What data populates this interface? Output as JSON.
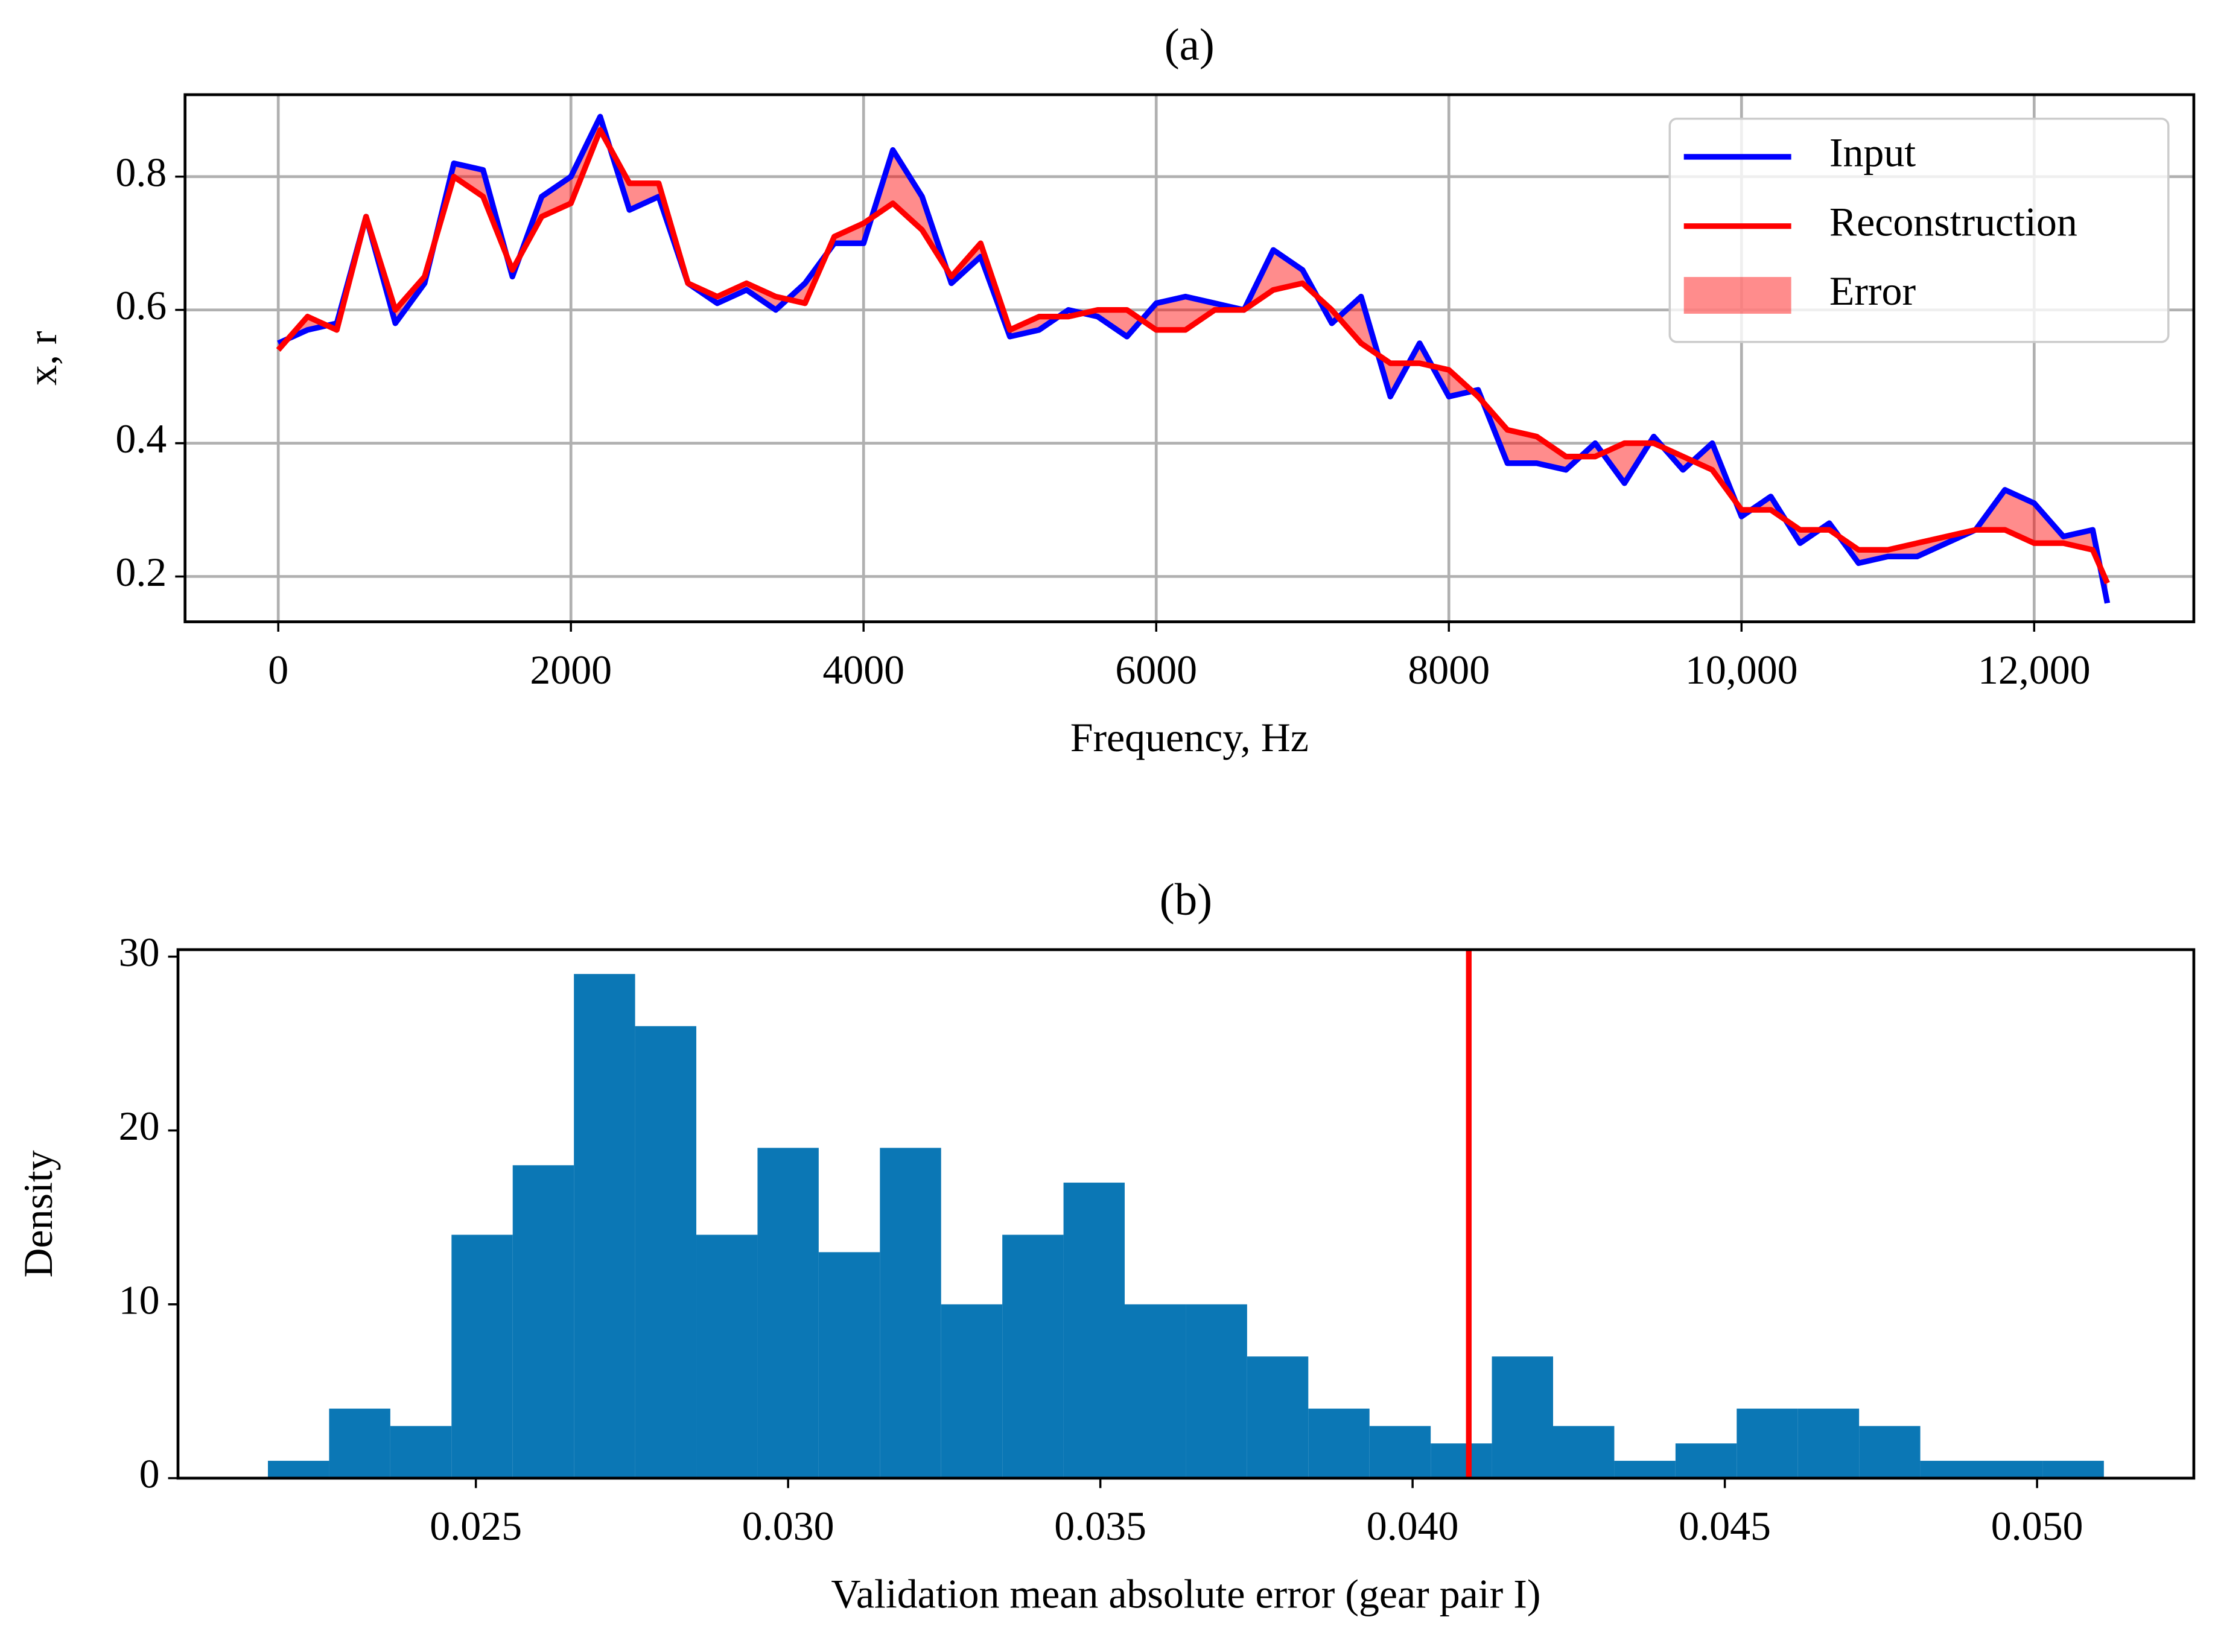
{
  "chart_data": [
    {
      "type": "line",
      "title": "(a)",
      "xlabel": "Frequency, Hz",
      "ylabel": "x, r",
      "x": [
        0,
        200,
        400,
        600,
        800,
        1000,
        1200,
        1400,
        1600,
        1800,
        2000,
        2200,
        2400,
        2600,
        2800,
        3000,
        3200,
        3400,
        3600,
        3800,
        4000,
        4200,
        4400,
        4600,
        4800,
        5000,
        5200,
        5400,
        5600,
        5800,
        6000,
        6200,
        6400,
        6600,
        6800,
        7000,
        7200,
        7400,
        7600,
        7800,
        8000,
        8200,
        8400,
        8600,
        8800,
        9000,
        9200,
        9400,
        9600,
        9800,
        10000,
        10200,
        10400,
        10600,
        10800,
        11000,
        11200,
        11400,
        11600,
        11800,
        12000,
        12200,
        12400,
        12500
      ],
      "series": [
        {
          "name": "Input",
          "color": "#0000ff",
          "values": [
            0.55,
            0.57,
            0.58,
            0.74,
            0.58,
            0.64,
            0.82,
            0.81,
            0.65,
            0.77,
            0.8,
            0.89,
            0.75,
            0.77,
            0.64,
            0.61,
            0.63,
            0.6,
            0.64,
            0.7,
            0.7,
            0.84,
            0.77,
            0.64,
            0.68,
            0.56,
            0.57,
            0.6,
            0.59,
            0.56,
            0.61,
            0.62,
            0.61,
            0.6,
            0.69,
            0.66,
            0.58,
            0.62,
            0.47,
            0.55,
            0.47,
            0.48,
            0.37,
            0.37,
            0.36,
            0.4,
            0.34,
            0.41,
            0.36,
            0.4,
            0.29,
            0.32,
            0.25,
            0.28,
            0.22,
            0.23,
            0.23,
            0.25,
            0.27,
            0.33,
            0.31,
            0.26,
            0.27,
            0.16
          ]
        },
        {
          "name": "Reconstruction",
          "color": "#ff0000",
          "values": [
            0.54,
            0.59,
            0.57,
            0.74,
            0.6,
            0.65,
            0.8,
            0.77,
            0.66,
            0.74,
            0.76,
            0.87,
            0.79,
            0.79,
            0.64,
            0.62,
            0.64,
            0.62,
            0.61,
            0.71,
            0.73,
            0.76,
            0.72,
            0.65,
            0.7,
            0.57,
            0.59,
            0.59,
            0.6,
            0.6,
            0.57,
            0.57,
            0.6,
            0.6,
            0.63,
            0.64,
            0.6,
            0.55,
            0.52,
            0.52,
            0.51,
            0.47,
            0.42,
            0.41,
            0.38,
            0.38,
            0.4,
            0.4,
            0.38,
            0.36,
            0.3,
            0.3,
            0.27,
            0.27,
            0.24,
            0.24,
            0.25,
            0.26,
            0.27,
            0.27,
            0.25,
            0.25,
            0.24,
            0.19
          ]
        }
      ],
      "error_fill": {
        "name": "Error",
        "color": "#ff0000",
        "alpha": 0.45
      },
      "xlim": [
        -637,
        13091
      ],
      "ylim": [
        0.132,
        0.923
      ],
      "xticks": [
        0,
        2000,
        4000,
        6000,
        8000,
        {
          "value": 10000,
          "label": "10,000"
        },
        {
          "value": 12000,
          "label": "12,000"
        }
      ],
      "yticks": [
        0.2,
        0.4,
        0.6,
        0.8
      ],
      "grid": true,
      "legend": "upper right"
    },
    {
      "type": "histogram",
      "title": "(b)",
      "xlabel": "Validation mean absolute error (gear pair I)",
      "ylabel": "Density",
      "bins": [
        0.02167,
        0.02265,
        0.02363,
        0.02461,
        0.02559,
        0.02657,
        0.02755,
        0.02853,
        0.02951,
        0.03049,
        0.03147,
        0.03245,
        0.03343,
        0.03441,
        0.03539,
        0.03637,
        0.03735,
        0.03833,
        0.03931,
        0.04029,
        0.04127,
        0.04225,
        0.04323,
        0.04421,
        0.04519,
        0.04617,
        0.04715,
        0.04813,
        0.04911,
        0.05009,
        0.05107
      ],
      "counts": [
        1,
        4,
        3,
        14,
        18,
        29,
        26,
        14,
        19,
        13,
        19,
        10,
        14,
        17,
        10,
        10,
        7,
        4,
        3,
        2,
        7,
        3,
        1,
        2,
        4,
        4,
        3,
        1,
        1,
        1
      ],
      "color": "#0b77b5",
      "vline": {
        "value": 0.0409,
        "color": "#ff0000"
      },
      "xlim": [
        0.02023,
        0.05251
      ],
      "ylim": [
        0,
        30.4
      ],
      "xticks": [
        0.025,
        {
          "value": 0.03,
          "label": "0.030"
        },
        0.035,
        {
          "value": 0.04,
          "label": "0.040"
        },
        0.045,
        {
          "value": 0.05,
          "label": "0.050"
        }
      ],
      "yticks": [
        0,
        10,
        20,
        30
      ],
      "grid": false
    }
  ]
}
